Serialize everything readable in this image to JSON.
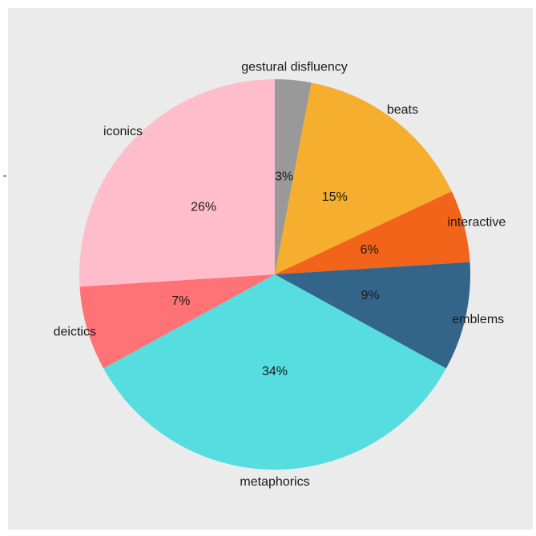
{
  "chart_data": {
    "type": "pie",
    "title": "",
    "slices": [
      {
        "label": "gestural disfluency",
        "value": 3,
        "percent_label": "3%",
        "color": "#999999"
      },
      {
        "label": "beats",
        "value": 15,
        "percent_label": "15%",
        "color": "#F5AE2E"
      },
      {
        "label": "interactive",
        "value": 6,
        "percent_label": "6%",
        "color": "#F26419"
      },
      {
        "label": "emblems",
        "value": 9,
        "percent_label": "9%",
        "color": "#33658A"
      },
      {
        "label": "metaphorics",
        "value": 34,
        "percent_label": "34%",
        "color": "#55DDE0"
      },
      {
        "label": "deictics",
        "value": 7,
        "percent_label": "7%",
        "color": "#FF7276"
      },
      {
        "label": "iconics",
        "value": 26,
        "percent_label": "26%",
        "color": "#FFBCCB"
      }
    ],
    "start": "12 o'clock",
    "direction": "clockwise",
    "legend": "none",
    "background_color": "#EBEBEB"
  }
}
